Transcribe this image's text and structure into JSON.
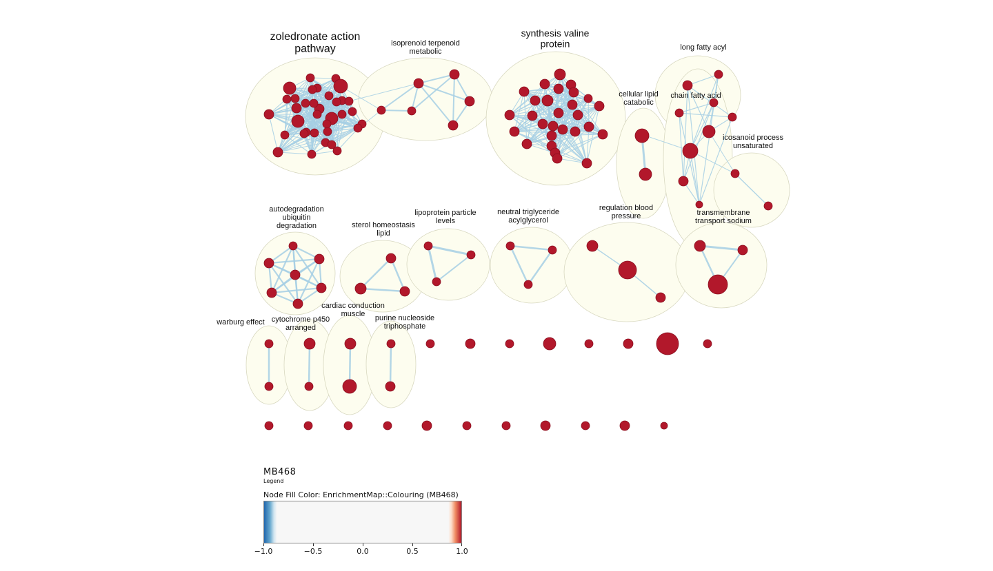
{
  "clusters": [
    {
      "label": [
        "zoledronate action",
        "pathway"
      ],
      "size": "large"
    },
    {
      "label": [
        "isoprenoid terpenoid",
        "metabolic"
      ],
      "size": "small"
    },
    {
      "label": [
        "synthesis valine",
        "protein"
      ],
      "size": "medium"
    },
    {
      "label": [
        "long fatty acyl"
      ],
      "size": "small"
    },
    {
      "label": [
        "cellular lipid",
        "catabolic"
      ],
      "size": "small"
    },
    {
      "label": [
        "chain fatty acid"
      ],
      "size": "small"
    },
    {
      "label": [
        "icosanoid process",
        "unsaturated"
      ],
      "size": "small"
    },
    {
      "label": [
        "autodegradation",
        "ubiquitin",
        "degradation"
      ],
      "size": "small"
    },
    {
      "label": [
        "sterol homeostasis",
        "lipid"
      ],
      "size": "small"
    },
    {
      "label": [
        "lipoprotein particle",
        "levels"
      ],
      "size": "small"
    },
    {
      "label": [
        "neutral triglyceride",
        "acylglycerol"
      ],
      "size": "small"
    },
    {
      "label": [
        "regulation blood",
        "pressure"
      ],
      "size": "small"
    },
    {
      "label": [
        "transmembrane",
        "transport sodium"
      ],
      "size": "small"
    },
    {
      "label": [
        "warburg effect"
      ],
      "size": "small"
    },
    {
      "label": [
        "cytochrome p450",
        "arranged"
      ],
      "size": "small"
    },
    {
      "label": [
        "cardiac conduction",
        "muscle"
      ],
      "size": "small"
    },
    {
      "label": [
        "purine nucleoside",
        "triphosphate"
      ],
      "size": "small"
    }
  ],
  "colors": {
    "node_fill": "#b2182b",
    "node_stroke": "#8a1020",
    "edge": "#a6cfe4",
    "cluster_fill": "#fdfdef",
    "cluster_stroke": "#d8d8c0"
  },
  "legend": {
    "title": "MB468",
    "subtitle": "Legend",
    "property": "Node Fill Color:  EnrichmentMap::Colouring (MB468)",
    "ticks": [
      "−1.0",
      "−0.5",
      "0.0",
      "0.5",
      "1.0"
    ]
  }
}
